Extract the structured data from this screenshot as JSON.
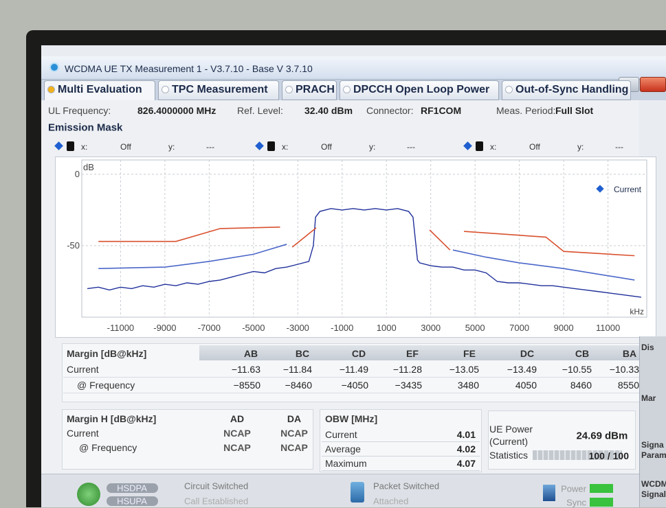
{
  "window": {
    "title": "WCDMA UE TX Measurement 1 - V3.7.10 - Base V 3.7.10"
  },
  "tabs": [
    "Multi Evaluation",
    "TPC Measurement",
    "PRACH",
    "DPCCH Open Loop Power",
    "Out-of-Sync Handling"
  ],
  "info": {
    "ul_frequency_label": "UL Frequency:",
    "ul_frequency": "826.4000000 MHz",
    "ref_level_label": "Ref. Level:",
    "ref_level": "32.40 dBm",
    "connector_label": "Connector:",
    "connector": "RF1COM",
    "meas_period_label": "Meas. Period:",
    "meas_period": "Full Slot"
  },
  "section_title": "Emission Mask",
  "markers": [
    {
      "x_label": "x:",
      "x": "Off",
      "y_label": "y:",
      "y": "---"
    },
    {
      "x_label": "x:",
      "x": "Off",
      "y_label": "y:",
      "y": "---"
    },
    {
      "x_label": "x:",
      "x": "Off",
      "y_label": "y:",
      "y": "---"
    }
  ],
  "chart_data": {
    "type": "line",
    "y_label": "dB",
    "x_label": "kHz",
    "xlim": [
      -12750,
      12750
    ],
    "ylim": [
      -100,
      10
    ],
    "xticks": [
      -11000,
      -9000,
      -7000,
      -5000,
      -3000,
      -1000,
      1000,
      3000,
      5000,
      7000,
      9000,
      11000
    ],
    "yticks": [
      0,
      -50
    ],
    "grid": true,
    "legend": "top-right",
    "series": [
      {
        "name": "Current",
        "color": "#1f2f9a",
        "x": [
          -12500,
          -12000,
          -11500,
          -11000,
          -10500,
          -10000,
          -9500,
          -9000,
          -8500,
          -8000,
          -7500,
          -7000,
          -6500,
          -6000,
          -5500,
          -5000,
          -4500,
          -4000,
          -3500,
          -3000,
          -2500,
          -2300,
          -2200,
          -2000,
          -1500,
          -1000,
          -500,
          0,
          500,
          1000,
          1500,
          2000,
          2200,
          2400,
          2500,
          3000,
          3500,
          4000,
          4500,
          5000,
          5500,
          6000,
          6500,
          7000,
          7500,
          8000,
          8500,
          9000,
          9500,
          10000,
          10500,
          11000,
          11500,
          12000,
          12500
        ],
        "values": [
          -80,
          -79,
          -81,
          -79,
          -80,
          -78,
          -79,
          -77,
          -78,
          -76,
          -77,
          -75,
          -74,
          -72,
          -70,
          -68,
          -69,
          -66,
          -65,
          -63,
          -61,
          -50,
          -30,
          -26,
          -24,
          -25,
          -24,
          -25,
          -24,
          -25,
          -24,
          -26,
          -30,
          -60,
          -62,
          -64,
          -65,
          -65,
          -67,
          -67,
          -69,
          -75,
          -76,
          -76,
          -77,
          -78,
          -78,
          -79,
          -80,
          -81,
          -82,
          -83,
          -84,
          -85,
          -86
        ]
      },
      {
        "color": "#d9502e",
        "x": [
          -12000,
          -8500,
          -6500,
          -3800,
          null,
          -3250,
          -2170,
          null,
          2950,
          3870,
          null,
          4500,
          8200,
          9000,
          12200
        ],
        "values": [
          -47,
          -47,
          -38,
          -37,
          null,
          -51,
          -37.5,
          null,
          -39,
          -53,
          null,
          -40,
          -44,
          -54,
          -57
        ]
      },
      {
        "color": "#4a66c8",
        "x": [
          -12000,
          -9000,
          -7000,
          -5000,
          -3500,
          null,
          4000,
          5500,
          7000,
          9000,
          12200
        ],
        "values": [
          -66,
          -65,
          -61,
          -56,
          -49,
          null,
          -53,
          -58,
          -62,
          -66,
          -74
        ]
      }
    ]
  },
  "margin_table": {
    "title": "Margin [dB@kHz]",
    "columns": [
      "AB",
      "BC",
      "CD",
      "EF",
      "FE",
      "DC",
      "CB",
      "BA"
    ],
    "rows": [
      {
        "label": "Current",
        "cells": [
          "−11.63",
          "−11.84",
          "−11.49",
          "−11.28",
          "−13.05",
          "−13.49",
          "−10.55",
          "−10.33"
        ]
      },
      {
        "label": "@ Frequency",
        "cells": [
          "−8550",
          "−8460",
          "−4050",
          "−3435",
          "3480",
          "4050",
          "8460",
          "8550"
        ]
      }
    ]
  },
  "margin_h_table": {
    "title": "Margin H [dB@kHz]",
    "columns": [
      "AD",
      "DA"
    ],
    "rows": [
      {
        "label": "Current",
        "cells": [
          "NCAP",
          "NCAP"
        ]
      },
      {
        "label": "@ Frequency",
        "cells": [
          "NCAP",
          "NCAP"
        ]
      }
    ]
  },
  "obw": {
    "title": "OBW [MHz]",
    "rows": [
      {
        "label": "Current",
        "value": "4.01"
      },
      {
        "label": "Average",
        "value": "4.02"
      },
      {
        "label": "Maximum",
        "value": "4.07"
      }
    ]
  },
  "ue_power": {
    "label": "UE Power",
    "sublabel": "(Current)",
    "value": "24.69",
    "unit": "dBm",
    "statistics_label": "Statistics",
    "statistics": "100 / 100"
  },
  "status": {
    "hsdpa": "HSDPA",
    "hsupa": "HSUPA",
    "circuit_switched": "Circuit Switched",
    "call_established": "Call Established",
    "packet_switched": "Packet Switched",
    "attached": "Attached",
    "power": "Power",
    "sync": "Sync"
  },
  "side_panel": [
    "Dis",
    "Mar",
    "Signa",
    "Param",
    "WCDM",
    "Signali"
  ]
}
